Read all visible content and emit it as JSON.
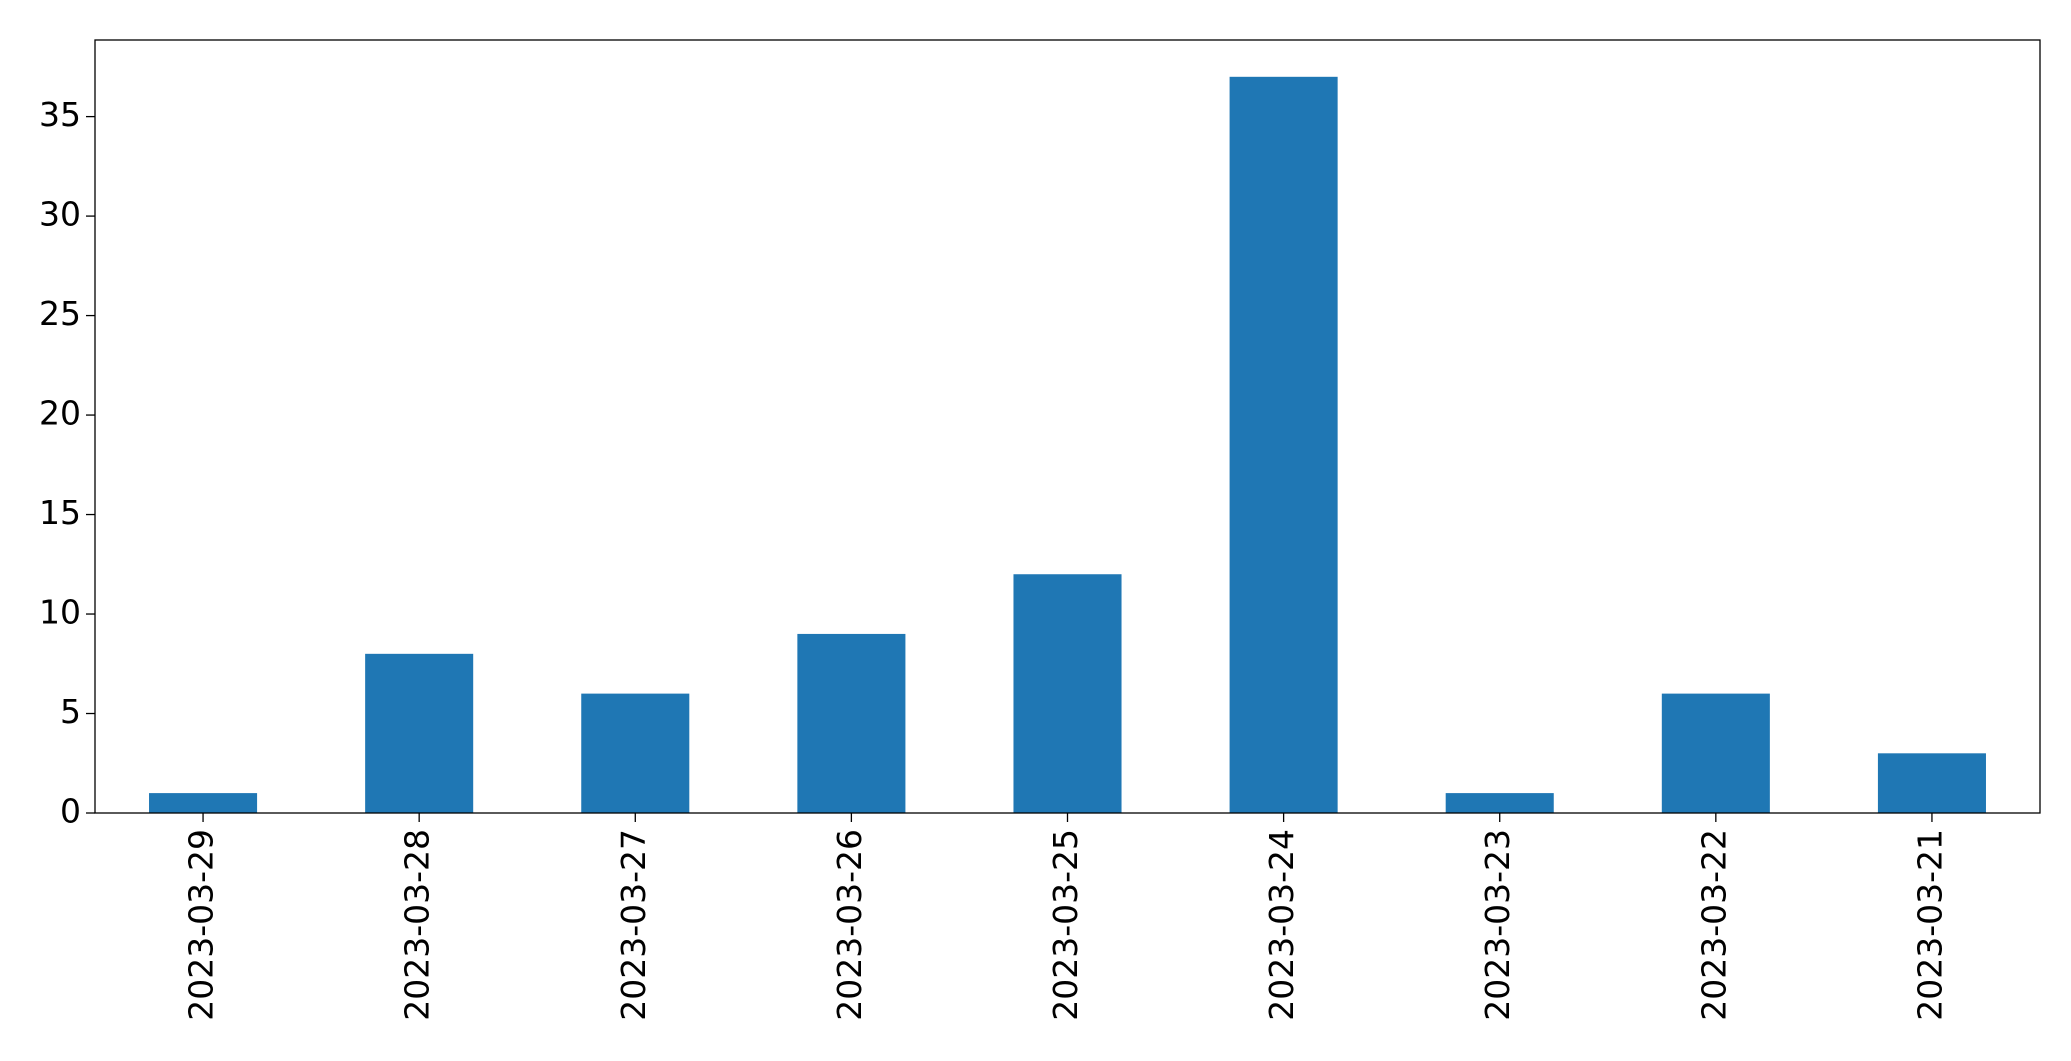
{
  "chart_data": {
    "type": "bar",
    "title": "",
    "xlabel": "",
    "ylabel": "",
    "categories": [
      "2023-03-29",
      "2023-03-28",
      "2023-03-27",
      "2023-03-26",
      "2023-03-25",
      "2023-03-24",
      "2023-03-23",
      "2023-03-22",
      "2023-03-21"
    ],
    "values": [
      1,
      8,
      6,
      9,
      12,
      37,
      1,
      6,
      3
    ],
    "ylim": [
      0,
      38.85
    ],
    "yticks": [
      0,
      5,
      10,
      15,
      20,
      25,
      30,
      35
    ],
    "grid": false,
    "legend": "none",
    "bar_color": "#1f77b4"
  }
}
